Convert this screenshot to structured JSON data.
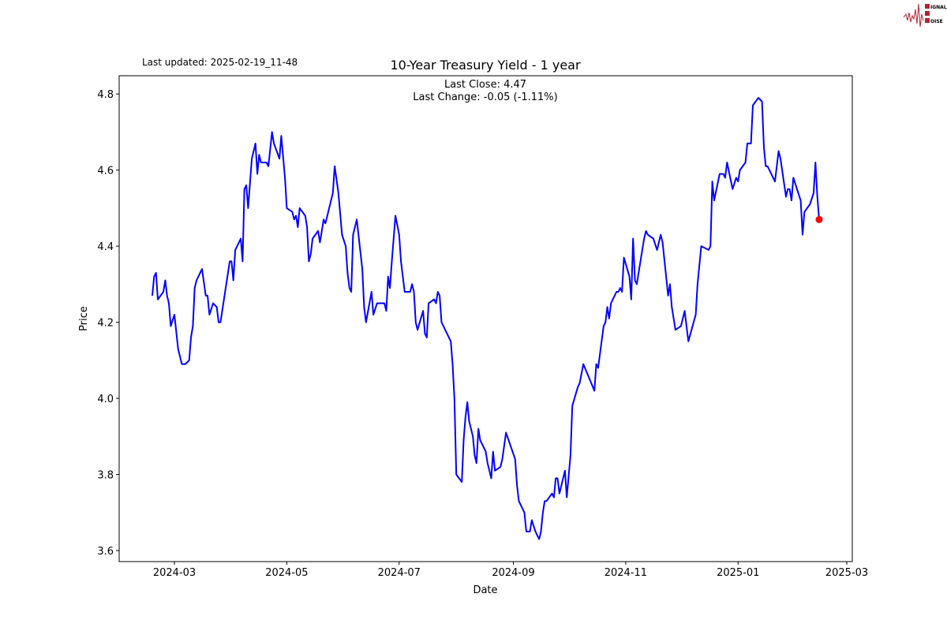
{
  "chart_data": {
    "type": "line",
    "title": "10-Year Treasury Yield - 1 year",
    "subtitle": "Last updated: 2025-02-19_11-48",
    "annotations": [
      "Last Close: 4.47",
      "Last Change: -0.05 (-1.11%)"
    ],
    "xlabel": "Date",
    "ylabel": "Price",
    "xlim": [
      "2024-01-31",
      "2025-03-04"
    ],
    "ylim": [
      3.571,
      4.848
    ],
    "x_ticks": [
      "2024-03",
      "2024-05",
      "2024-07",
      "2024-09",
      "2024-11",
      "2025-01",
      "2025-03"
    ],
    "y_ticks": [
      "3.6",
      "3.8",
      "4.0",
      "4.2",
      "4.4",
      "4.6",
      "4.8"
    ],
    "grid": false,
    "line_color": "#0000ff",
    "marker_color": "#ff0000",
    "last_point": {
      "x": "2025-02-14",
      "y": 4.47
    },
    "x": [
      "2024-02-18",
      "2024-02-19",
      "2024-02-20",
      "2024-02-21",
      "2024-02-24",
      "2024-02-25",
      "2024-02-26",
      "2024-02-27",
      "2024-02-28",
      "2024-03-01",
      "2024-03-03",
      "2024-03-05",
      "2024-03-07",
      "2024-03-09",
      "2024-03-10",
      "2024-03-11",
      "2024-03-12",
      "2024-03-13",
      "2024-03-16",
      "2024-03-18",
      "2024-03-19",
      "2024-03-20",
      "2024-03-22",
      "2024-03-24",
      "2024-03-25",
      "2024-03-26",
      "2024-03-31",
      "2024-04-01",
      "2024-04-02",
      "2024-04-03",
      "2024-04-06",
      "2024-04-07",
      "2024-04-08",
      "2024-04-09",
      "2024-04-10",
      "2024-04-12",
      "2024-04-14",
      "2024-04-15",
      "2024-04-16",
      "2024-04-17",
      "2024-04-20",
      "2024-04-21",
      "2024-04-23",
      "2024-04-24",
      "2024-04-27",
      "2024-04-28",
      "2024-04-30",
      "2024-05-01",
      "2024-05-04",
      "2024-05-05",
      "2024-05-06",
      "2024-05-07",
      "2024-05-08",
      "2024-05-11",
      "2024-05-12",
      "2024-05-13",
      "2024-05-14",
      "2024-05-15",
      "2024-05-18",
      "2024-05-19",
      "2024-05-20",
      "2024-05-21",
      "2024-05-22",
      "2024-05-26",
      "2024-05-27",
      "2024-05-29",
      "2024-05-31",
      "2024-06-02",
      "2024-06-03",
      "2024-06-04",
      "2024-06-05",
      "2024-06-06",
      "2024-06-08",
      "2024-06-11",
      "2024-06-12",
      "2024-06-13",
      "2024-06-16",
      "2024-06-17",
      "2024-06-19",
      "2024-06-23",
      "2024-06-24",
      "2024-06-25",
      "2024-06-26",
      "2024-06-27",
      "2024-06-29",
      "2024-07-01",
      "2024-07-02",
      "2024-07-04",
      "2024-07-07",
      "2024-07-08",
      "2024-07-09",
      "2024-07-10",
      "2024-07-11",
      "2024-07-14",
      "2024-07-15",
      "2024-07-16",
      "2024-07-17",
      "2024-07-20",
      "2024-07-21",
      "2024-07-22",
      "2024-07-23",
      "2024-07-24",
      "2024-07-27",
      "2024-07-29",
      "2024-07-30",
      "2024-07-31",
      "2024-08-01",
      "2024-08-04",
      "2024-08-05",
      "2024-08-06",
      "2024-08-07",
      "2024-08-08",
      "2024-08-10",
      "2024-08-11",
      "2024-08-12",
      "2024-08-13",
      "2024-08-14",
      "2024-08-17",
      "2024-08-18",
      "2024-08-20",
      "2024-08-21",
      "2024-08-22",
      "2024-08-25",
      "2024-08-26",
      "2024-08-28",
      "2024-09-02",
      "2024-09-03",
      "2024-09-04",
      "2024-09-07",
      "2024-09-08",
      "2024-09-10",
      "2024-09-11",
      "2024-09-13",
      "2024-09-15",
      "2024-09-16",
      "2024-09-17",
      "2024-09-18",
      "2024-09-19",
      "2024-09-22",
      "2024-09-23",
      "2024-09-24",
      "2024-09-25",
      "2024-09-26",
      "2024-09-29",
      "2024-09-30",
      "2024-10-02",
      "2024-10-03",
      "2024-10-06",
      "2024-10-07",
      "2024-10-09",
      "2024-10-15",
      "2024-10-16",
      "2024-10-17",
      "2024-10-20",
      "2024-10-21",
      "2024-10-22",
      "2024-10-23",
      "2024-10-24",
      "2024-10-27",
      "2024-10-28",
      "2024-10-29",
      "2024-10-30",
      "2024-10-31",
      "2024-11-03",
      "2024-11-04",
      "2024-11-05",
      "2024-11-06",
      "2024-11-07",
      "2024-11-11",
      "2024-11-12",
      "2024-11-13",
      "2024-11-16",
      "2024-11-18",
      "2024-11-20",
      "2024-11-21",
      "2024-11-24",
      "2024-11-25",
      "2024-11-26",
      "2024-11-28",
      "2024-12-01",
      "2024-12-03",
      "2024-12-04",
      "2024-12-05",
      "2024-12-09",
      "2024-12-10",
      "2024-12-12",
      "2024-12-16",
      "2024-12-17",
      "2024-12-18",
      "2024-12-19",
      "2024-12-22",
      "2024-12-24",
      "2024-12-25",
      "2024-12-26",
      "2024-12-29",
      "2024-12-31",
      "2025-01-01",
      "2025-01-02",
      "2025-01-05",
      "2025-01-06",
      "2025-01-08",
      "2025-01-09",
      "2025-01-12",
      "2025-01-14",
      "2025-01-15",
      "2025-01-16",
      "2025-01-17",
      "2025-01-21",
      "2025-01-23",
      "2025-01-24",
      "2025-01-27",
      "2025-01-28",
      "2025-01-29",
      "2025-01-30",
      "2025-01-31",
      "2025-02-04",
      "2025-02-05",
      "2025-02-06",
      "2025-02-09",
      "2025-02-11",
      "2025-02-12",
      "2025-02-13",
      "2025-02-14"
    ],
    "y": [
      4.27,
      4.32,
      4.33,
      4.26,
      4.28,
      4.31,
      4.27,
      4.25,
      4.19,
      4.22,
      4.13,
      4.09,
      4.09,
      4.1,
      4.16,
      4.19,
      4.29,
      4.31,
      4.34,
      4.27,
      4.27,
      4.22,
      4.25,
      4.24,
      4.2,
      4.2,
      4.36,
      4.36,
      4.31,
      4.39,
      4.42,
      4.36,
      4.55,
      4.56,
      4.5,
      4.63,
      4.67,
      4.59,
      4.64,
      4.62,
      4.62,
      4.61,
      4.7,
      4.67,
      4.63,
      4.69,
      4.58,
      4.5,
      4.49,
      4.47,
      4.48,
      4.45,
      4.5,
      4.48,
      4.45,
      4.36,
      4.38,
      4.42,
      4.44,
      4.41,
      4.44,
      4.47,
      4.46,
      4.54,
      4.61,
      4.54,
      4.43,
      4.4,
      4.33,
      4.29,
      4.28,
      4.43,
      4.47,
      4.34,
      4.24,
      4.2,
      4.28,
      4.22,
      4.25,
      4.25,
      4.23,
      4.32,
      4.29,
      4.36,
      4.48,
      4.43,
      4.36,
      4.28,
      4.28,
      4.3,
      4.28,
      4.2,
      4.18,
      4.23,
      4.17,
      4.16,
      4.25,
      4.26,
      4.25,
      4.28,
      4.27,
      4.2,
      4.17,
      4.15,
      4.09,
      4.0,
      3.8,
      3.78,
      3.89,
      3.95,
      3.99,
      3.94,
      3.9,
      3.85,
      3.83,
      3.92,
      3.89,
      3.86,
      3.83,
      3.79,
      3.86,
      3.81,
      3.82,
      3.84,
      3.91,
      3.84,
      3.77,
      3.73,
      3.7,
      3.65,
      3.65,
      3.68,
      3.65,
      3.63,
      3.65,
      3.7,
      3.73,
      3.73,
      3.75,
      3.74,
      3.79,
      3.79,
      3.75,
      3.81,
      3.74,
      3.85,
      3.98,
      4.03,
      4.04,
      4.09,
      4.02,
      4.09,
      4.08,
      4.19,
      4.2,
      4.24,
      4.21,
      4.25,
      4.28,
      4.28,
      4.29,
      4.28,
      4.37,
      4.32,
      4.26,
      4.42,
      4.31,
      4.3,
      4.42,
      4.44,
      4.43,
      4.42,
      4.39,
      4.43,
      4.41,
      4.27,
      4.3,
      4.24,
      4.18,
      4.19,
      4.23,
      4.19,
      4.15,
      4.22,
      4.3,
      4.4,
      4.39,
      4.4,
      4.57,
      4.52,
      4.59,
      4.59,
      4.58,
      4.62,
      4.55,
      4.58,
      4.57,
      4.6,
      4.62,
      4.67,
      4.67,
      4.77,
      4.79,
      4.78,
      4.66,
      4.61,
      4.61,
      4.57,
      4.65,
      4.63,
      4.53,
      4.55,
      4.55,
      4.52,
      4.58,
      4.52,
      4.43,
      4.49,
      4.51,
      4.54,
      4.62,
      4.53,
      4.47
    ]
  },
  "logo": {
    "text": "SIGNAL 2 NOISE",
    "color": "#b22234"
  }
}
